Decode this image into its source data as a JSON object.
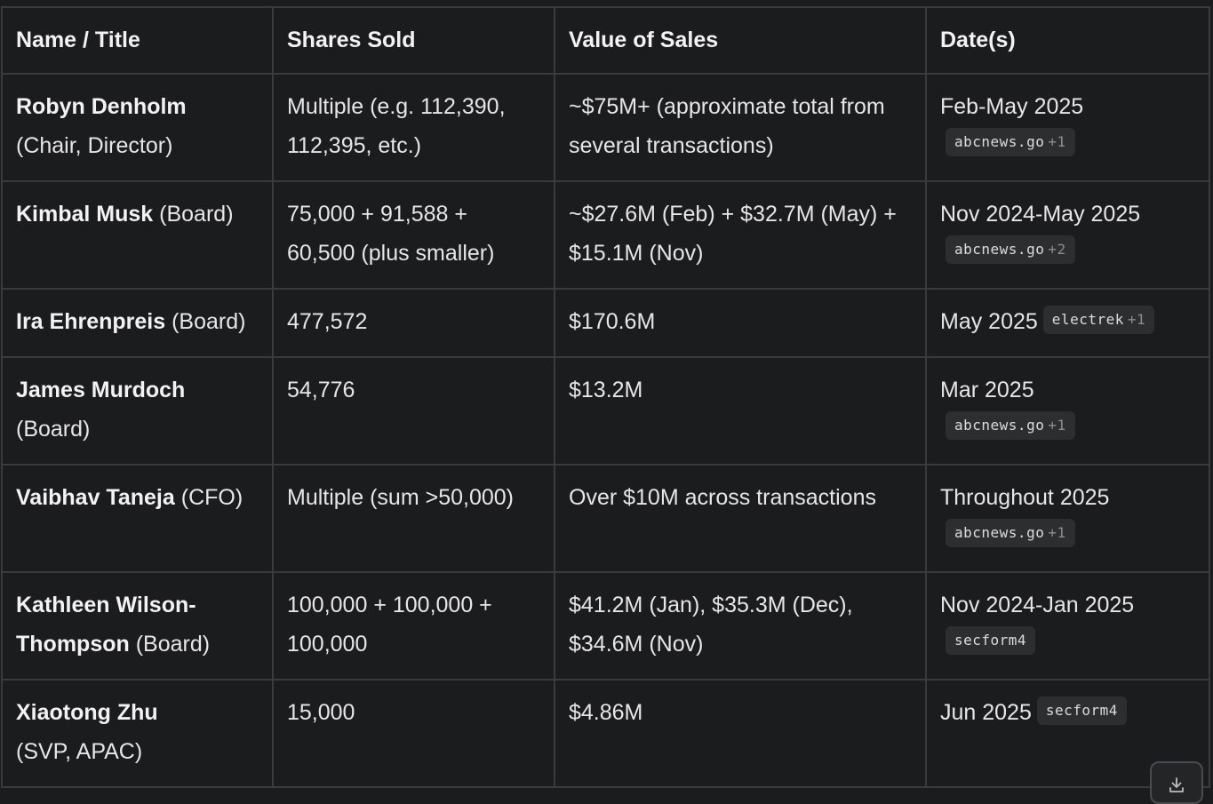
{
  "headers": [
    "Name / Title",
    "Shares Sold",
    "Value of Sales",
    "Date(s)"
  ],
  "rows": [
    {
      "name": "Robyn Denholm",
      "title": "(Chair, Director)",
      "shares": "Multiple (e.g. 112,390, 112,395, etc.)",
      "value": "~$75M+ (approximate total from several transactions)",
      "date": "Feb-May 2025",
      "source": "abcnews.go",
      "source_count": "+1"
    },
    {
      "name": "Kimbal Musk",
      "title": "(Board)",
      "shares": "75,000 + 91,588 + 60,500 (plus smaller)",
      "value": "~$27.6M (Feb) + $32.7M (May) + $15.1M (Nov)",
      "date": "Nov 2024-May 2025",
      "source": "abcnews.go",
      "source_count": "+2"
    },
    {
      "name": "Ira Ehrenpreis",
      "title": "(Board)",
      "shares": "477,572",
      "value": "$170.6M",
      "date": "May 2025",
      "source": "electrek",
      "source_count": "+1"
    },
    {
      "name": "James Murdoch",
      "title": "(Board)",
      "shares": "54,776",
      "value": "$13.2M",
      "date": "Mar 2025",
      "source": "abcnews.go",
      "source_count": "+1"
    },
    {
      "name": "Vaibhav Taneja",
      "title": "(CFO)",
      "shares": "Multiple (sum >50,000)",
      "value": "Over $10M across transactions",
      "date": "Throughout 2025",
      "source": "abcnews.go",
      "source_count": "+1"
    },
    {
      "name": "Kathleen Wilson-Thompson",
      "title": "(Board)",
      "shares": "100,000 + 100,000 + 100,000",
      "value": "$41.2M (Jan), $35.3M (Dec), $34.6M (Nov)",
      "date": "Nov 2024-Jan 2025",
      "source": "secform4",
      "source_count": ""
    },
    {
      "name": "Xiaotong Zhu",
      "title": "(SVP, APAC)",
      "shares": "15,000",
      "value": "$4.86M",
      "date": "Jun 2025",
      "source": "secform4",
      "source_count": ""
    }
  ],
  "icons": {
    "download": "download-icon"
  }
}
